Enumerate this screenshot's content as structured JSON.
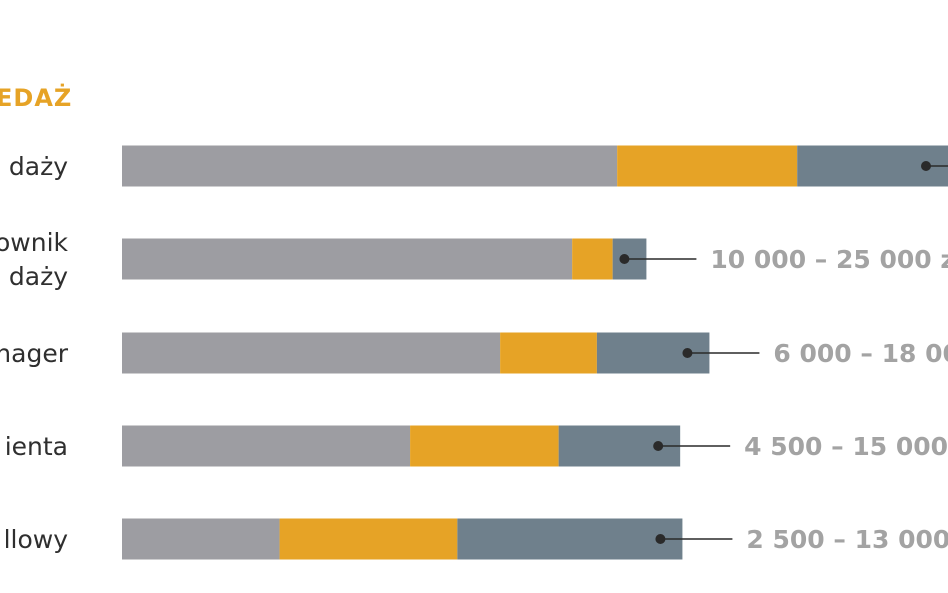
{
  "chart_data": {
    "type": "bar",
    "stacked": true,
    "orientation": "horizontal",
    "title": "EDAŻ",
    "categories": [
      [
        "daży"
      ],
      [
        "ownik",
        "daży"
      ],
      [
        "nager"
      ],
      [
        "ienta"
      ],
      [
        "llowy"
      ]
    ],
    "range_labels": [
      "",
      "10 000 – 25 000 z",
      "6 000 – 18 00",
      "4 500 – 15 000",
      "2 500 – 13 000"
    ],
    "series": [
      {
        "values": [
          22000,
          20000,
          16800,
          12800,
          7000
        ]
      },
      {
        "values": [
          8000,
          1800,
          4300,
          6600,
          7900
        ]
      },
      {
        "values": [
          6700,
          1500,
          5000,
          5400,
          10000
        ]
      }
    ],
    "xlim": [
      0,
      36700
    ]
  },
  "colors": {
    "series": [
      "#9d9da2",
      "#e6a326",
      "#6f808c"
    ],
    "title": "#e6a326",
    "range_label": "#a3a3a3",
    "marker": "#2a2a2a",
    "row_label": "#2f2f2f"
  }
}
